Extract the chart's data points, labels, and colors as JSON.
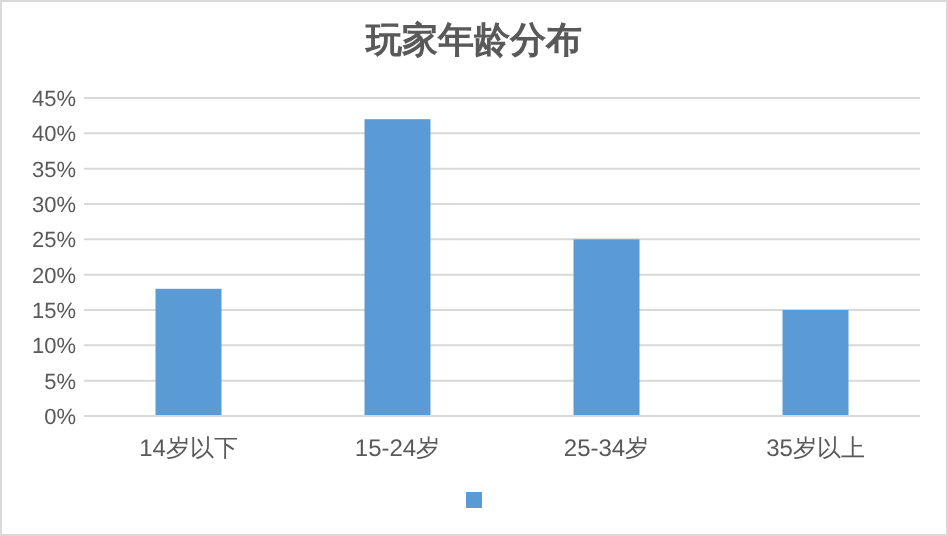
{
  "chart_data": {
    "type": "bar",
    "title": "玩家年龄分布",
    "categories": [
      "14岁以下",
      "15-24岁",
      "25-34岁",
      "35岁以上"
    ],
    "series": [
      {
        "color": "#5b9bd5",
        "values": [
          18,
          42,
          25,
          15
        ]
      }
    ],
    "ylim": [
      0,
      45
    ],
    "yticks": [
      {
        "value": 0,
        "label": "0%"
      },
      {
        "value": 5,
        "label": "5%"
      },
      {
        "value": 10,
        "label": "10%"
      },
      {
        "value": 15,
        "label": "15%"
      },
      {
        "value": 20,
        "label": "20%"
      },
      {
        "value": 25,
        "label": "25%"
      },
      {
        "value": 30,
        "label": "30%"
      },
      {
        "value": 35,
        "label": "35%"
      },
      {
        "value": 40,
        "label": "40%"
      },
      {
        "value": 45,
        "label": "45%"
      }
    ],
    "grid": "y"
  }
}
